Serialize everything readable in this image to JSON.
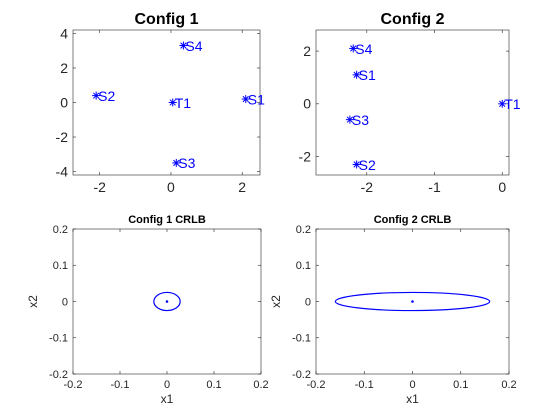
{
  "colors": {
    "series": "#0000ff",
    "axis": "#262626",
    "background": "#ffffff"
  },
  "chart_data": [
    {
      "type": "scatter",
      "title": "Config 1",
      "xlabel": "",
      "ylabel": "",
      "xlim": [
        -2.75,
        2.5
      ],
      "ylim": [
        -4.2,
        4.2
      ],
      "xticks": [
        -2,
        0,
        2
      ],
      "yticks": [
        -4,
        -2,
        0,
        2,
        4
      ],
      "marker": "*",
      "grid": false,
      "points": [
        {
          "label": "S1",
          "x": 2.1,
          "y": 0.2
        },
        {
          "label": "S2",
          "x": -2.1,
          "y": 0.4
        },
        {
          "label": "S3",
          "x": 0.15,
          "y": -3.5
        },
        {
          "label": "S4",
          "x": 0.35,
          "y": 3.3
        },
        {
          "label": "T1",
          "x": 0.05,
          "y": 0.0
        }
      ]
    },
    {
      "type": "scatter",
      "title": "Config 2",
      "xlabel": "",
      "ylabel": "",
      "xlim": [
        -2.75,
        0.1
      ],
      "ylim": [
        -2.7,
        2.8
      ],
      "xticks": [
        -2,
        -1,
        0
      ],
      "yticks": [
        -2,
        0,
        2
      ],
      "marker": "*",
      "grid": false,
      "points": [
        {
          "label": "S1",
          "x": -2.15,
          "y": 1.1
        },
        {
          "label": "S2",
          "x": -2.15,
          "y": -2.3
        },
        {
          "label": "S3",
          "x": -2.25,
          "y": -0.6
        },
        {
          "label": "S4",
          "x": -2.2,
          "y": 2.1
        },
        {
          "label": "T1",
          "x": 0.0,
          "y": 0.0
        }
      ]
    },
    {
      "type": "line",
      "title": "Config 1 CRLB",
      "xlabel": "x1",
      "ylabel": "x2",
      "xlim": [
        -0.2,
        0.2
      ],
      "ylim": [
        -0.2,
        0.2
      ],
      "xticks": [
        -0.2,
        -0.1,
        0,
        0.1,
        0.2
      ],
      "yticks": [
        -0.2,
        -0.1,
        0,
        0.1,
        0.2
      ],
      "grid": false,
      "ellipse": {
        "cx": 0.0,
        "cy": 0.0,
        "rx": 0.028,
        "ry": 0.025
      },
      "center": {
        "x": 0.0,
        "y": 0.0
      }
    },
    {
      "type": "line",
      "title": "Config 2 CRLB",
      "xlabel": "x1",
      "ylabel": "x2",
      "xlim": [
        -0.2,
        0.2
      ],
      "ylim": [
        -0.2,
        0.2
      ],
      "xticks": [
        -0.2,
        -0.1,
        0,
        0.1,
        0.2
      ],
      "yticks": [
        -0.2,
        -0.1,
        0,
        0.1,
        0.2
      ],
      "grid": false,
      "ellipse": {
        "cx": 0.0,
        "cy": 0.0,
        "rx": 0.16,
        "ry": 0.025
      },
      "center": {
        "x": 0.0,
        "y": 0.0
      }
    }
  ]
}
